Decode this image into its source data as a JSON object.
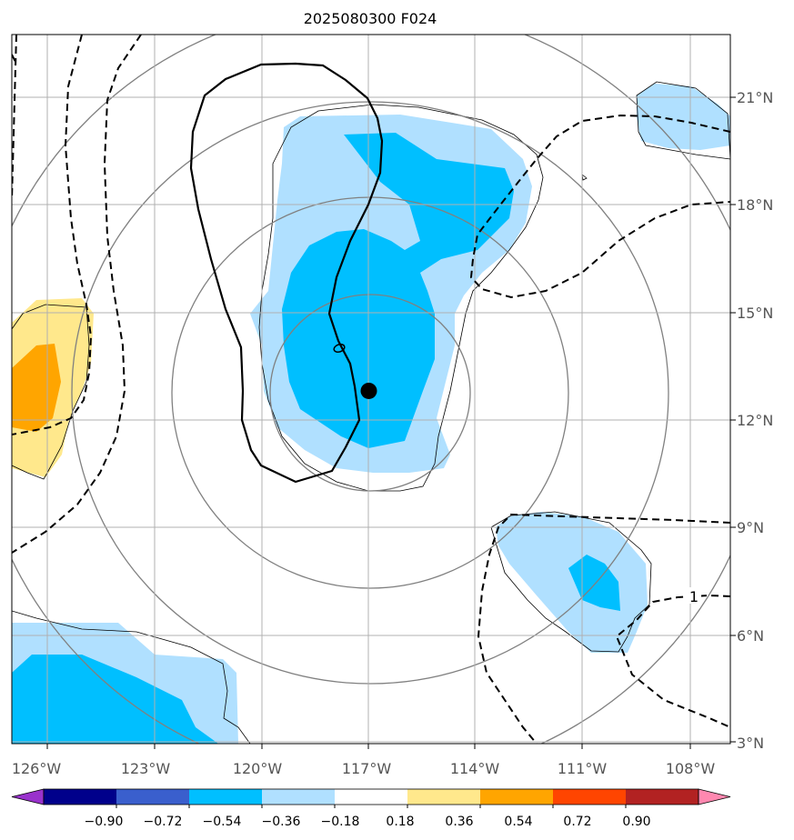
{
  "title": "2025080300 F024",
  "chart_data": {
    "type": "map",
    "title": "2025080300 F024",
    "lon_ticks": [
      "126°W",
      "123°W",
      "120°W",
      "117°W",
      "114°W",
      "111°W",
      "108°W"
    ],
    "lat_ticks": [
      "21°N",
      "18°N",
      "15°N",
      "12°N",
      "9°N",
      "6°N",
      "3°N"
    ],
    "lon_range": [
      -127,
      -107
    ],
    "lat_range": [
      2.8,
      22.5
    ],
    "grid": true,
    "center_marker": {
      "lon": -117.0,
      "lat": 12.8
    },
    "contour_label": "1",
    "colorbar": {
      "ticks": [
        "−0.90",
        "−0.72",
        "−0.54",
        "−0.36",
        "−0.18",
        "0.18",
        "0.36",
        "0.54",
        "0.72",
        "0.90"
      ],
      "colors": [
        "#9932cc",
        "#00008b",
        "#3a5fcd",
        "#00bfff",
        "#b0e0ff",
        "#ffffff",
        "#ffe88c",
        "#ffa500",
        "#ff4500",
        "#b22222",
        "#ff88b0"
      ],
      "extend": "both"
    }
  }
}
